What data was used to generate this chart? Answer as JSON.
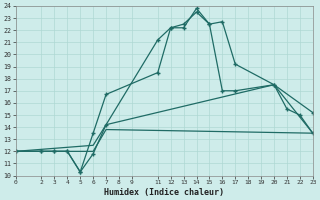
{
  "xlabel": "Humidex (Indice chaleur)",
  "bg_color": "#ceecea",
  "line_color": "#1f6b65",
  "grid_color": "#afd8d4",
  "xlim": [
    0,
    23
  ],
  "ylim": [
    10,
    24
  ],
  "xticks": [
    0,
    2,
    3,
    4,
    5,
    6,
    7,
    8,
    9,
    11,
    12,
    13,
    14,
    15,
    16,
    17,
    18,
    19,
    20,
    21,
    22,
    23
  ],
  "yticks": [
    10,
    11,
    12,
    13,
    14,
    15,
    16,
    17,
    18,
    19,
    20,
    21,
    22,
    23,
    24
  ],
  "line1_x": [
    0,
    2,
    3,
    4,
    5,
    6,
    7,
    11,
    12,
    13,
    14,
    15,
    16,
    17,
    20,
    23
  ],
  "line1_y": [
    12,
    12,
    12,
    12,
    10.3,
    11.8,
    14.2,
    21.2,
    22.2,
    22.2,
    23.8,
    22.5,
    22.7,
    19.2,
    17.5,
    15.2
  ],
  "line2_x": [
    0,
    2,
    3,
    4,
    5,
    6,
    7,
    11,
    12,
    13,
    14,
    15,
    16,
    17,
    20,
    21,
    22,
    23
  ],
  "line2_y": [
    12,
    12,
    12,
    12,
    10.3,
    13.5,
    16.7,
    18.5,
    22.2,
    22.5,
    23.5,
    22.5,
    17.0,
    17.0,
    17.5,
    15.5,
    15.0,
    13.5
  ],
  "line3_x": [
    0,
    6,
    7,
    23
  ],
  "line3_y": [
    12,
    12,
    13.8,
    13.5
  ],
  "line4_x": [
    0,
    6,
    7,
    20,
    23
  ],
  "line4_y": [
    12,
    12.5,
    14.2,
    17.5,
    13.5
  ]
}
